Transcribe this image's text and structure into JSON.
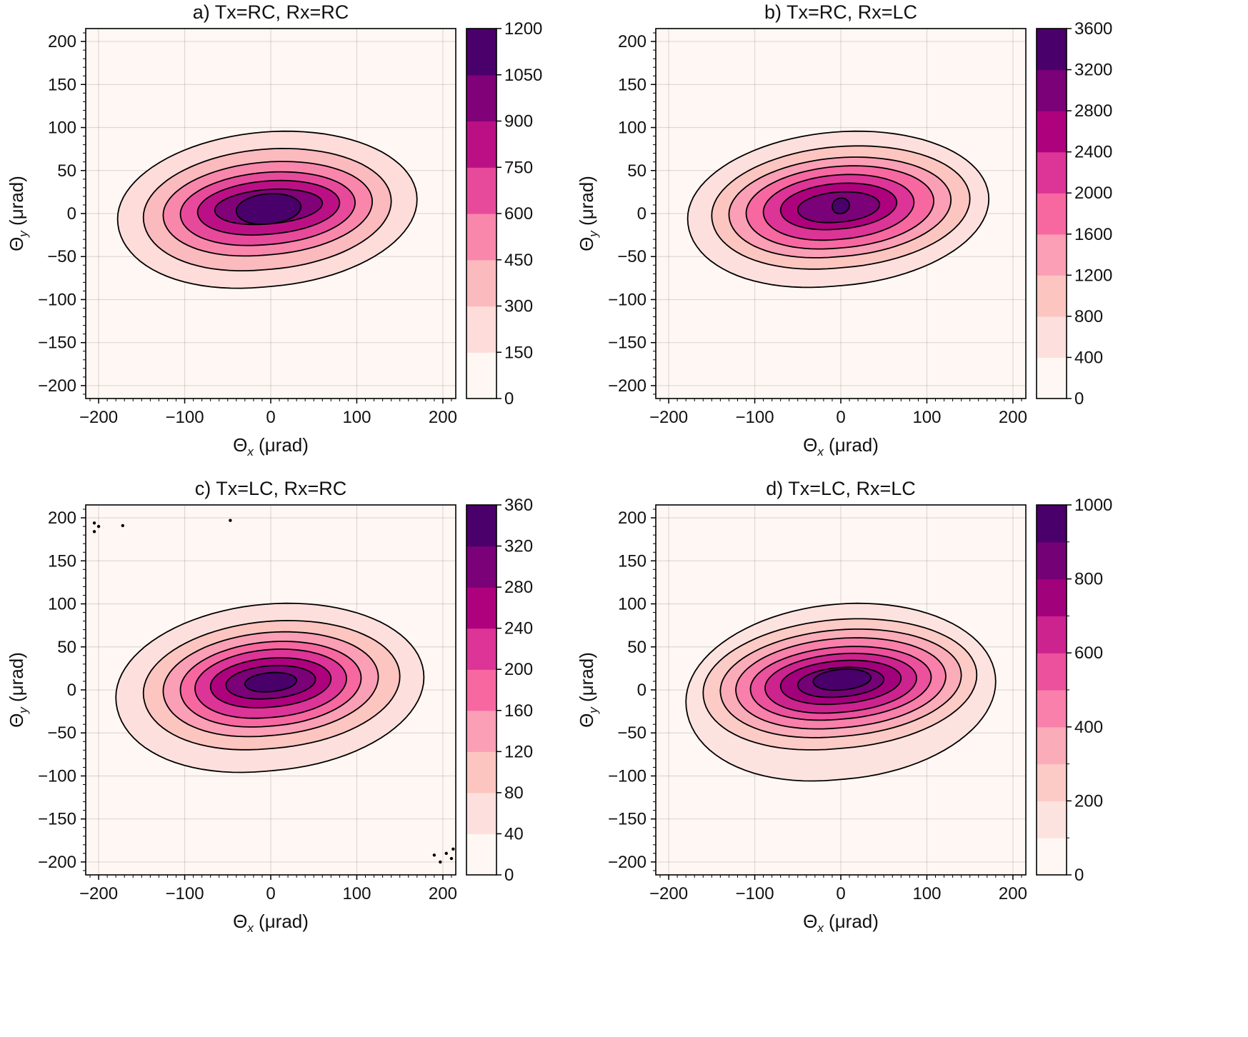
{
  "chart_data": [
    {
      "type": "contourf",
      "title": "a) Tx=RC, Rx=RC",
      "xlabel": "(μrad)",
      "ylabel": "(μrad)",
      "xlabel_symbol": "Θ",
      "xlabel_sub": "x",
      "ylabel_symbol": "Θ",
      "ylabel_sub": "y",
      "xlim": [
        -215,
        215
      ],
      "ylim": [
        -215,
        215
      ],
      "xticks": [
        -200,
        -100,
        0,
        100,
        200
      ],
      "yticks": [
        -200,
        -150,
        -100,
        -50,
        0,
        50,
        100,
        150,
        200
      ],
      "xtick_labels": [
        "−200",
        "−100",
        "0",
        "100",
        "200"
      ],
      "ytick_labels": [
        "−200",
        "−150",
        "−100",
        "−50",
        "0",
        "50",
        "100",
        "150",
        "200"
      ],
      "grid": true,
      "colormap": "RdPu",
      "levels": [
        0,
        150,
        300,
        450,
        600,
        750,
        900,
        1050,
        1200
      ],
      "colorbar_ticks": [
        0,
        150,
        300,
        450,
        600,
        750,
        900,
        1050,
        1200
      ],
      "colorbar_tick_labels": [
        "0",
        "150",
        "300",
        "450",
        "600",
        "750",
        "900",
        "1050",
        "1200"
      ],
      "peak": 1150,
      "center": [
        0,
        8
      ],
      "contour_lines": 7,
      "contour_extents": [
        {
          "x": [
            -178,
            170
          ],
          "y": [
            -85,
            95
          ]
        },
        {
          "x": [
            -148,
            140
          ],
          "y": [
            -65,
            75
          ]
        },
        {
          "x": [
            -125,
            118
          ],
          "y": [
            -48,
            60
          ]
        },
        {
          "x": [
            -105,
            98
          ],
          "y": [
            -36,
            48
          ]
        },
        {
          "x": [
            -85,
            80
          ],
          "y": [
            -24,
            38
          ]
        },
        {
          "x": [
            -65,
            60
          ],
          "y": [
            -12,
            28
          ]
        },
        {
          "x": [
            -40,
            35
          ],
          "y": [
            -12,
            23
          ]
        }
      ],
      "noise_specks": []
    },
    {
      "type": "contourf",
      "title": "b) Tx=RC, Rx=LC",
      "xlabel": "(μrad)",
      "ylabel": "(μrad)",
      "xlabel_symbol": "Θ",
      "xlabel_sub": "x",
      "ylabel_symbol": "Θ",
      "ylabel_sub": "y",
      "xlim": [
        -215,
        215
      ],
      "ylim": [
        -215,
        215
      ],
      "xticks": [
        -200,
        -100,
        0,
        100,
        200
      ],
      "yticks": [
        -200,
        -150,
        -100,
        -50,
        0,
        50,
        100,
        150,
        200
      ],
      "xtick_labels": [
        "−200",
        "−100",
        "0",
        "100",
        "200"
      ],
      "ytick_labels": [
        "−200",
        "−150",
        "−100",
        "−50",
        "0",
        "50",
        "100",
        "150",
        "200"
      ],
      "grid": true,
      "colormap": "RdPu",
      "levels": [
        0,
        400,
        800,
        1200,
        1600,
        2000,
        2400,
        2800,
        3200,
        3600
      ],
      "colorbar_ticks": [
        0,
        400,
        800,
        1200,
        1600,
        2000,
        2400,
        2800,
        3200,
        3600
      ],
      "colorbar_tick_labels": [
        "0",
        "400",
        "800",
        "1200",
        "1600",
        "2000",
        "2400",
        "2800",
        "3200",
        "3600"
      ],
      "peak": 3300,
      "center": [
        -5,
        10
      ],
      "contour_lines": 8,
      "contour_extents": [
        {
          "x": [
            -178,
            172
          ],
          "y": [
            -84,
            95
          ]
        },
        {
          "x": [
            -150,
            150
          ],
          "y": [
            -63,
            78
          ]
        },
        {
          "x": [
            -130,
            128
          ],
          "y": [
            -50,
            65
          ]
        },
        {
          "x": [
            -110,
            108
          ],
          "y": [
            -40,
            55
          ]
        },
        {
          "x": [
            -90,
            85
          ],
          "y": [
            -30,
            45
          ]
        },
        {
          "x": [
            -70,
            65
          ],
          "y": [
            -18,
            35
          ]
        },
        {
          "x": [
            -50,
            45
          ],
          "y": [
            -10,
            25
          ]
        },
        {
          "x": [
            -10,
            10
          ],
          "y": [
            0,
            18
          ]
        }
      ],
      "noise_specks": []
    },
    {
      "type": "contourf",
      "title": "c) Tx=LC, Rx=RC",
      "xlabel": "(μrad)",
      "ylabel": "(μrad)",
      "xlabel_symbol": "Θ",
      "xlabel_sub": "x",
      "ylabel_symbol": "Θ",
      "ylabel_sub": "y",
      "xlim": [
        -215,
        215
      ],
      "ylim": [
        -215,
        215
      ],
      "xticks": [
        -200,
        -100,
        0,
        100,
        200
      ],
      "yticks": [
        -200,
        -150,
        -100,
        -50,
        0,
        50,
        100,
        150,
        200
      ],
      "xtick_labels": [
        "−200",
        "−100",
        "0",
        "100",
        "200"
      ],
      "ytick_labels": [
        "−200",
        "−150",
        "−100",
        "−50",
        "0",
        "50",
        "100",
        "150",
        "200"
      ],
      "grid": true,
      "colormap": "RdPu",
      "levels": [
        0,
        40,
        80,
        120,
        160,
        200,
        240,
        280,
        320,
        360
      ],
      "colorbar_ticks": [
        0,
        40,
        80,
        120,
        160,
        200,
        240,
        280,
        320,
        360
      ],
      "colorbar_tick_labels": [
        "0",
        "40",
        "80",
        "120",
        "160",
        "200",
        "240",
        "280",
        "320",
        "360"
      ],
      "peak": 345,
      "center": [
        0,
        12
      ],
      "contour_lines": 8,
      "contour_extents": [
        {
          "x": [
            -180,
            178
          ],
          "y": [
            -94,
            100
          ]
        },
        {
          "x": [
            -148,
            150
          ],
          "y": [
            -68,
            80
          ]
        },
        {
          "x": [
            -125,
            125
          ],
          "y": [
            -53,
            67
          ]
        },
        {
          "x": [
            -105,
            105
          ],
          "y": [
            -42,
            56
          ]
        },
        {
          "x": [
            -88,
            88
          ],
          "y": [
            -32,
            47
          ]
        },
        {
          "x": [
            -70,
            70
          ],
          "y": [
            -20,
            37
          ]
        },
        {
          "x": [
            -52,
            52
          ],
          "y": [
            -10,
            28
          ]
        },
        {
          "x": [
            -30,
            30
          ],
          "y": [
            -2,
            20
          ]
        }
      ],
      "noise_specks": [
        {
          "x": -205,
          "y": 194
        },
        {
          "x": -200,
          "y": 190
        },
        {
          "x": -205,
          "y": 184
        },
        {
          "x": -172,
          "y": 191
        },
        {
          "x": -47,
          "y": 197
        },
        {
          "x": 190,
          "y": -192
        },
        {
          "x": 197,
          "y": -200
        },
        {
          "x": 204,
          "y": -190
        },
        {
          "x": 210,
          "y": -196
        },
        {
          "x": 212,
          "y": -185
        }
      ]
    },
    {
      "type": "contourf",
      "title": "d) Tx=LC, Rx=LC",
      "xlabel": "(μrad)",
      "ylabel": "(μrad)",
      "xlabel_symbol": "Θ",
      "xlabel_sub": "x",
      "ylabel_symbol": "Θ",
      "ylabel_sub": "y",
      "xlim": [
        -215,
        215
      ],
      "ylim": [
        -215,
        215
      ],
      "xticks": [
        -200,
        -100,
        0,
        100,
        200
      ],
      "yticks": [
        -200,
        -150,
        -100,
        -50,
        0,
        50,
        100,
        150,
        200
      ],
      "xtick_labels": [
        "−200",
        "−100",
        "0",
        "100",
        "200"
      ],
      "ytick_labels": [
        "−200",
        "−150",
        "−100",
        "−50",
        "0",
        "50",
        "100",
        "150",
        "200"
      ],
      "grid": true,
      "colormap": "RdPu",
      "levels": [
        0,
        100,
        200,
        300,
        400,
        500,
        600,
        700,
        800,
        900,
        1000
      ],
      "colorbar_ticks": [
        0,
        200,
        400,
        600,
        800,
        1000
      ],
      "colorbar_tick_labels": [
        "0",
        "200",
        "400",
        "600",
        "800",
        "1000"
      ],
      "peak": 970,
      "center": [
        0,
        12
      ],
      "contour_lines": 9,
      "contour_extents": [
        {
          "x": [
            -180,
            180
          ],
          "y": [
            -104,
            100
          ]
        },
        {
          "x": [
            -160,
            158
          ],
          "y": [
            -68,
            82
          ]
        },
        {
          "x": [
            -140,
            140
          ],
          "y": [
            -54,
            70
          ]
        },
        {
          "x": [
            -122,
            122
          ],
          "y": [
            -44,
            60
          ]
        },
        {
          "x": [
            -105,
            105
          ],
          "y": [
            -34,
            50
          ]
        },
        {
          "x": [
            -88,
            88
          ],
          "y": [
            -26,
            42
          ]
        },
        {
          "x": [
            -70,
            70
          ],
          "y": [
            -16,
            34
          ]
        },
        {
          "x": [
            -50,
            50
          ],
          "y": [
            -8,
            26
          ]
        },
        {
          "x": [
            -32,
            35
          ],
          "y": [
            0,
            24
          ]
        }
      ],
      "noise_specks": []
    }
  ]
}
